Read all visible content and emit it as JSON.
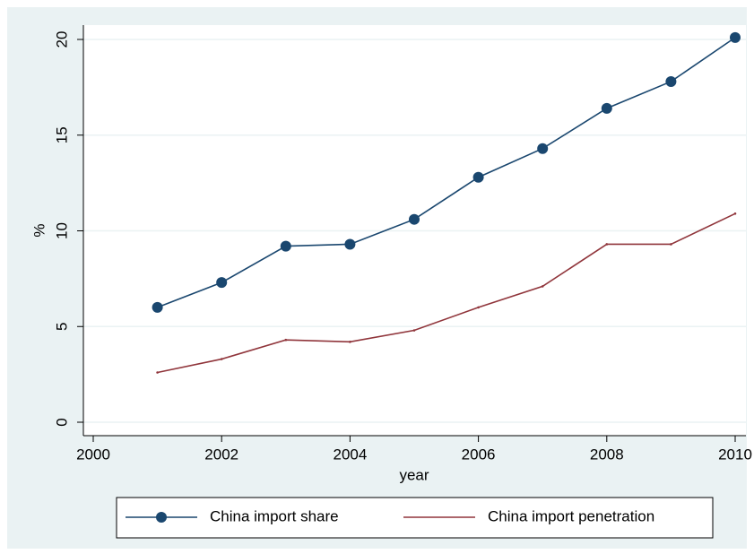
{
  "chart_data": {
    "type": "line",
    "x": [
      2001,
      2002,
      2003,
      2004,
      2005,
      2006,
      2007,
      2008,
      2009,
      2010
    ],
    "series": [
      {
        "name": "China import share",
        "color": "#1a476f",
        "marker": "circle",
        "values": [
          6.0,
          7.3,
          9.2,
          9.3,
          10.6,
          12.8,
          14.3,
          16.4,
          17.8,
          20.1
        ]
      },
      {
        "name": "China import penetration",
        "color": "#90353b",
        "marker": "none",
        "values": [
          2.6,
          3.3,
          4.3,
          4.2,
          4.8,
          6.0,
          7.1,
          9.3,
          9.3,
          10.9
        ]
      }
    ],
    "xlabel": "year",
    "ylabel": "%",
    "xlim": [
      2000,
      2010
    ],
    "xticks": [
      2000,
      2002,
      2004,
      2006,
      2008,
      2010
    ],
    "ylim": [
      0,
      20
    ],
    "yticks": [
      0,
      5,
      10,
      15,
      20
    ],
    "grid": true,
    "legend": "bottom"
  }
}
